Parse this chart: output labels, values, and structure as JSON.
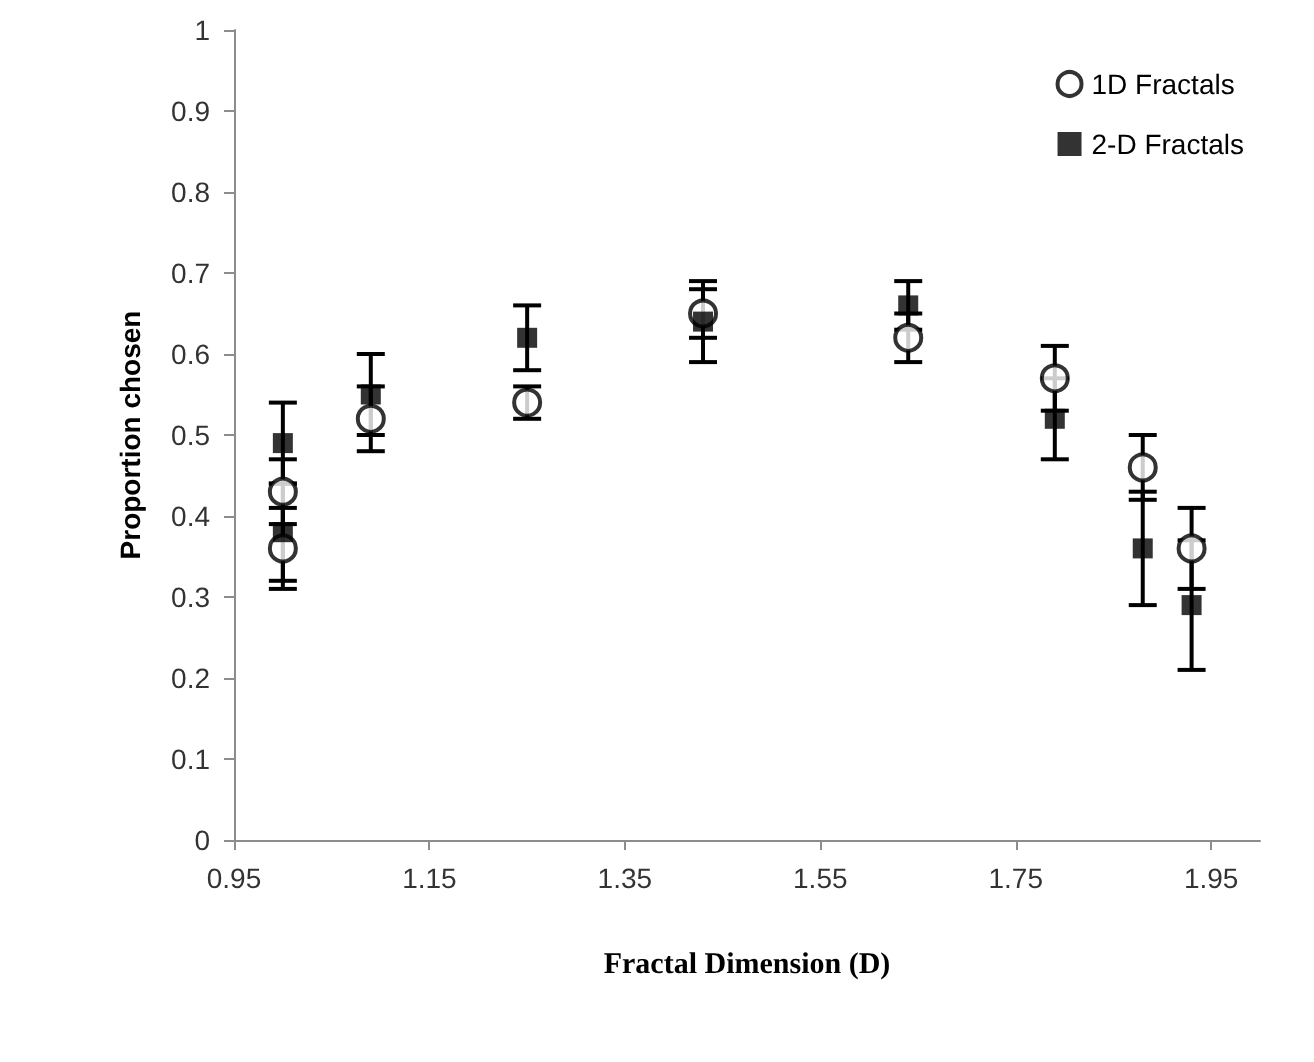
{
  "chart_data": {
    "type": "scatter",
    "xlabel": "Fractal Dimension (D)",
    "ylabel": "Proportion chosen",
    "xlim": [
      0.95,
      2.0
    ],
    "xticks": [
      0.95,
      1.15,
      1.35,
      1.55,
      1.75,
      1.95
    ],
    "ylim": [
      0,
      1
    ],
    "yticks": [
      0,
      {
        "value": 0.1,
        "label": "0.1"
      },
      {
        "value": 0.2,
        "label": "0.2"
      },
      {
        "value": 0.3,
        "label": "0.3"
      },
      {
        "value": 0.4,
        "label": "0.4"
      },
      {
        "value": 0.5,
        "label": "0.5"
      },
      {
        "value": 0.6,
        "label": "0.6"
      },
      {
        "value": 0.7,
        "label": "0.7"
      },
      {
        "value": 0.8,
        "label": "0.8"
      },
      {
        "value": 0.9,
        "label": "0.9"
      },
      1
    ],
    "grid": false,
    "legend": "top right",
    "series": [
      {
        "name": "1D Fractals",
        "color": "#000000",
        "marker": "circle",
        "x": [
          1.0,
          1.0,
          1.09,
          1.25,
          1.43,
          1.64,
          1.79,
          1.88,
          1.93
        ],
        "values": [
          0.36,
          0.43,
          0.52,
          0.54,
          0.65,
          0.62,
          0.57,
          0.46,
          0.36
        ],
        "errors": [
          0.05,
          0.04,
          0.04,
          0.02,
          0.03,
          0.03,
          0.04,
          0.04,
          0.05
        ]
      },
      {
        "name": "2-D Fractals",
        "color": "#000000",
        "marker": "square",
        "x": [
          1.0,
          1.0,
          1.09,
          1.25,
          1.43,
          1.64,
          1.79,
          1.88,
          1.93
        ],
        "values": [
          0.49,
          0.38,
          0.55,
          0.62,
          0.64,
          0.66,
          0.52,
          0.36,
          0.29
        ],
        "errors": [
          0.05,
          0.06,
          0.05,
          0.04,
          0.05,
          0.03,
          0.05,
          0.07,
          0.08
        ]
      }
    ]
  }
}
